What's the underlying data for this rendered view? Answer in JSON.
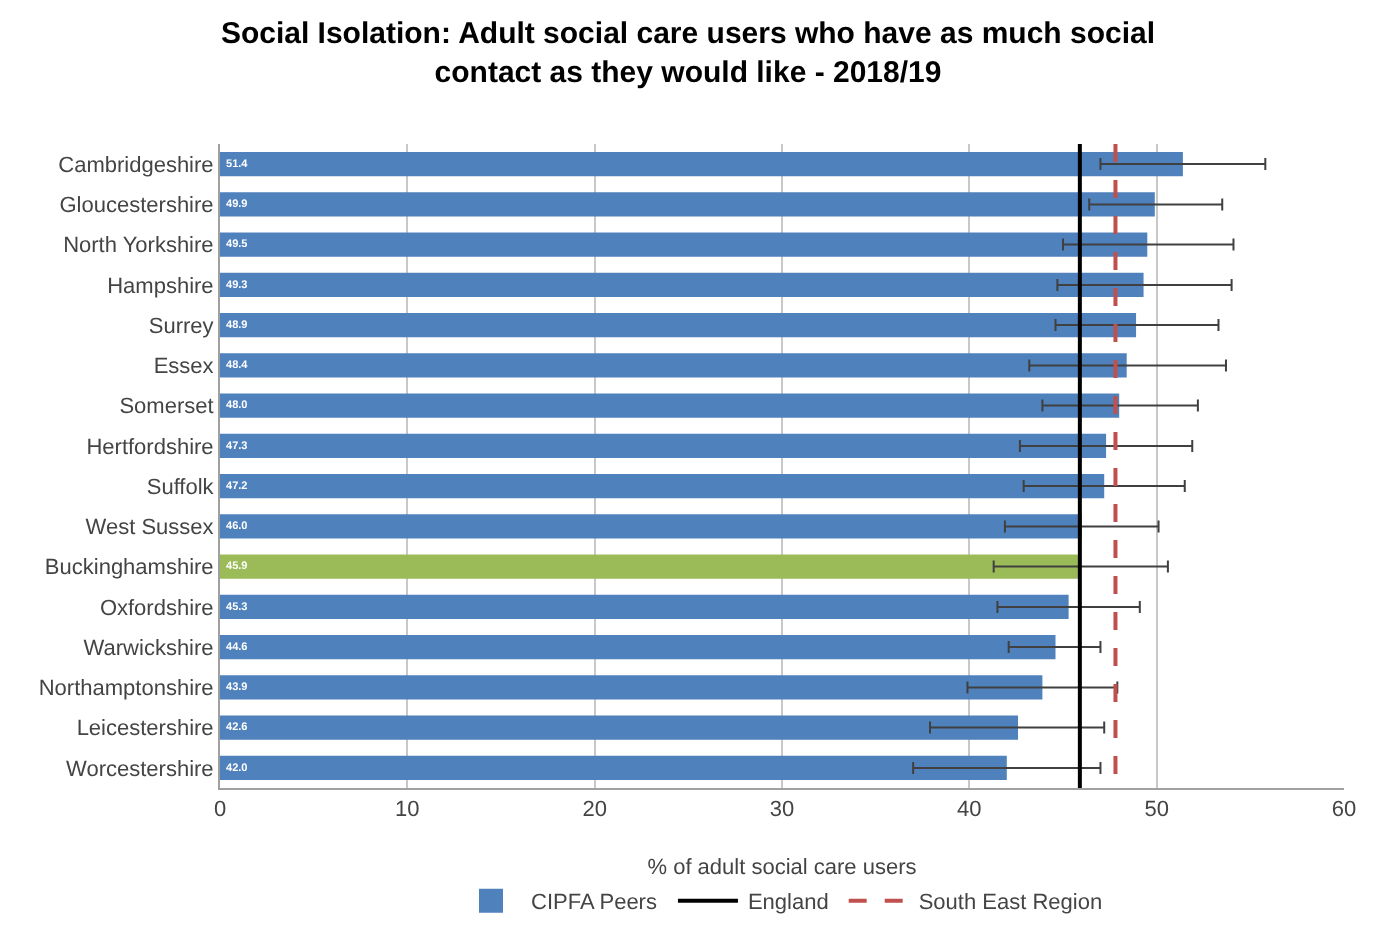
{
  "chart_data": {
    "type": "bar",
    "orientation": "horizontal",
    "title": "Social Isolation: Adult social care users who have as much social contact as they would like - 2018/19",
    "xlabel": "% of adult social care users",
    "categories": [
      "Cambridgeshire",
      "Gloucestershire",
      "North Yorkshire",
      "Hampshire",
      "Surrey",
      "Essex",
      "Somerset",
      "Hertfordshire",
      "Suffolk",
      "West Sussex",
      "Buckinghamshire",
      "Oxfordshire",
      "Warwickshire",
      "Northamptonshire",
      "Leicestershire",
      "Worcestershire"
    ],
    "series": [
      {
        "name": "CIPFA Peers",
        "color": "#4f81bd",
        "values": [
          51.4,
          49.9,
          49.5,
          49.3,
          48.9,
          48.4,
          48.0,
          47.3,
          47.2,
          46.0,
          45.9,
          45.3,
          44.6,
          43.9,
          42.6,
          42.0
        ],
        "colors": [
          null,
          null,
          null,
          null,
          null,
          null,
          null,
          null,
          null,
          null,
          "#9bbb59",
          null,
          null,
          null,
          null,
          null
        ],
        "value_labels": [
          "51.4",
          "49.9",
          "49.5",
          "49.3",
          "48.9",
          "48.4",
          "48.0",
          "47.3",
          "47.2",
          "46.0",
          "45.9",
          "45.3",
          "44.6",
          "43.9",
          "42.6",
          "42.0"
        ],
        "errors": [
          [
            47.0,
            55.8
          ],
          [
            46.4,
            53.5
          ],
          [
            45.0,
            54.1
          ],
          [
            44.7,
            54.0
          ],
          [
            44.6,
            53.3
          ],
          [
            43.2,
            53.7
          ],
          [
            43.9,
            52.2
          ],
          [
            42.7,
            51.9
          ],
          [
            42.9,
            51.5
          ],
          [
            41.9,
            50.1
          ],
          [
            41.3,
            50.6
          ],
          [
            41.5,
            49.1
          ],
          [
            42.1,
            47.0
          ],
          [
            39.9,
            47.9
          ],
          [
            37.9,
            47.2
          ],
          [
            37.0,
            47.0
          ]
        ]
      }
    ],
    "ref_lines": [
      {
        "axis": "x",
        "value": 45.9,
        "label": "England",
        "color": "#000000",
        "line_style": "solid"
      },
      {
        "axis": "x",
        "value": 47.8,
        "label": "South East Region",
        "color": "#c0504d",
        "line_style": "dashed"
      }
    ],
    "xlim": [
      0,
      60
    ],
    "xticks": [
      0,
      10,
      20,
      30,
      40,
      50,
      60
    ],
    "grid": "x",
    "legend": "bottom"
  }
}
